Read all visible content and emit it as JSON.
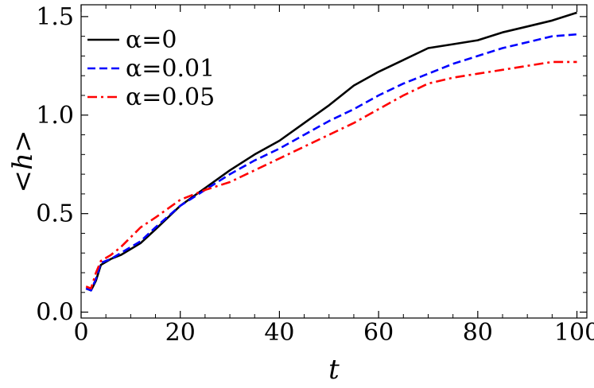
{
  "chart_data": {
    "type": "line",
    "xlabel": "t",
    "ylabel": "<h>",
    "xlim": [
      0,
      102
    ],
    "ylim": [
      -0.03,
      1.56
    ],
    "xticks": [
      0,
      20,
      40,
      60,
      80,
      100
    ],
    "yticks": [
      0.0,
      0.5,
      1.0,
      1.5
    ],
    "xtick_labels": [
      "0",
      "20",
      "40",
      "60",
      "80",
      "100"
    ],
    "ytick_labels": [
      "0.0",
      "0.5",
      "1.0",
      "1.5"
    ],
    "grid": false,
    "legend_position": "top-left",
    "series": [
      {
        "name": "α=0",
        "color": "#000000",
        "dash": "solid",
        "x": [
          1,
          2,
          3,
          4,
          6,
          8,
          10,
          12,
          15,
          20,
          25,
          30,
          35,
          40,
          45,
          50,
          55,
          60,
          65,
          70,
          75,
          80,
          85,
          90,
          95,
          100
        ],
        "y": [
          0.12,
          0.11,
          0.16,
          0.24,
          0.27,
          0.29,
          0.32,
          0.35,
          0.42,
          0.54,
          0.63,
          0.72,
          0.8,
          0.87,
          0.96,
          1.05,
          1.15,
          1.22,
          1.28,
          1.34,
          1.36,
          1.38,
          1.42,
          1.45,
          1.48,
          1.52
        ]
      },
      {
        "name": "α=0.01",
        "color": "#0000ff",
        "dash": "dashed",
        "x": [
          1,
          2,
          3,
          4,
          6,
          8,
          10,
          12,
          15,
          20,
          25,
          30,
          35,
          40,
          45,
          50,
          55,
          60,
          65,
          70,
          75,
          80,
          85,
          90,
          95,
          100
        ],
        "y": [
          0.12,
          0.11,
          0.17,
          0.25,
          0.27,
          0.3,
          0.33,
          0.36,
          0.43,
          0.54,
          0.62,
          0.7,
          0.77,
          0.83,
          0.9,
          0.97,
          1.03,
          1.1,
          1.16,
          1.21,
          1.26,
          1.3,
          1.34,
          1.37,
          1.4,
          1.41
        ]
      },
      {
        "name": "α=0.05",
        "color": "#ff0000",
        "dash": "dashdot",
        "x": [
          1,
          2,
          3,
          4,
          6,
          8,
          10,
          12,
          15,
          20,
          25,
          30,
          35,
          40,
          45,
          50,
          55,
          60,
          65,
          70,
          75,
          80,
          85,
          90,
          95,
          100
        ],
        "y": [
          0.13,
          0.12,
          0.2,
          0.26,
          0.29,
          0.33,
          0.38,
          0.43,
          0.48,
          0.57,
          0.62,
          0.66,
          0.72,
          0.78,
          0.84,
          0.9,
          0.96,
          1.03,
          1.1,
          1.16,
          1.19,
          1.21,
          1.23,
          1.25,
          1.27,
          1.27
        ]
      }
    ]
  }
}
